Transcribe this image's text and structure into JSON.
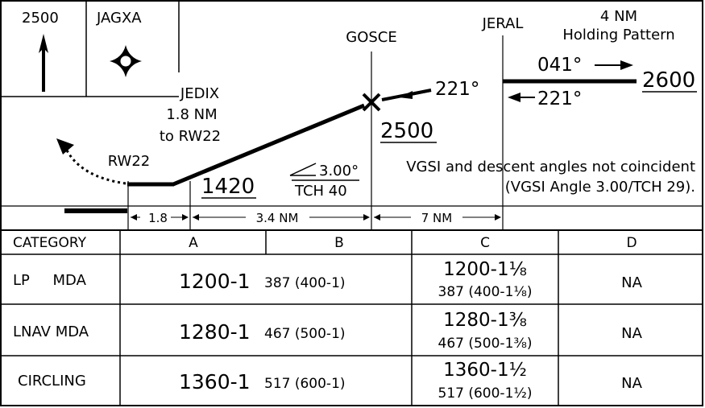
{
  "header_boxes": {
    "msa_altitude": "2500",
    "iaf_name": "JAGXA"
  },
  "fixes": {
    "jedix": [
      "JEDIX",
      "1.8 NM",
      "to RW22"
    ],
    "gosce": "GOSCE",
    "jeral": "JERAL",
    "runway": "RW22"
  },
  "holding": {
    "title": [
      "4 NM",
      "Holding Pattern"
    ],
    "inbound_course": "041°",
    "outbound_course": "221°",
    "altitude": "2600"
  },
  "profile": {
    "course": "221°",
    "gosce_altitude": "2500",
    "jedix_altitude": "1420",
    "glide_angle": "3.00°",
    "tch": "TCH 40",
    "vgsi_note": [
      "VGSI and descent angles not coincident",
      "(VGSI Angle 3.00/TCH 29)."
    ]
  },
  "distances": {
    "seg1": "1.8",
    "seg2": "3.4 NM",
    "seg3": "7 NM"
  },
  "minimums": {
    "headers": [
      "CATEGORY",
      "A",
      "B",
      "C",
      "D"
    ],
    "rows": [
      {
        "category": "LP     MDA",
        "ab_main": "1200-1",
        "ab_sub": "387 (400-1)",
        "c_main": "1200-1⅛",
        "c_sub": "387 (400-1⅛)",
        "d": "NA"
      },
      {
        "category": "LNAV MDA",
        "ab_main": "1280-1",
        "ab_sub": "467 (500-1)",
        "c_main": "1280-1⅜",
        "c_sub": "467 (500-1⅜)",
        "d": "NA"
      },
      {
        "category": "CIRCLING",
        "ab_main": "1360-1",
        "ab_sub": "517 (600-1)",
        "c_main": "1360-1½",
        "c_sub": "517 (600-1½)",
        "d": "NA"
      }
    ]
  }
}
